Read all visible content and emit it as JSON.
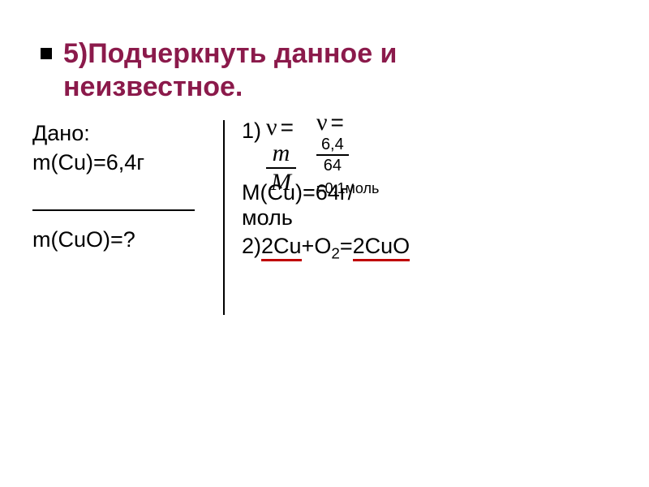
{
  "title": {
    "line1": "5)Подчеркнуть данное и",
    "line2": "неизвестное.",
    "color": "#8b1a4b",
    "fontsize": 34,
    "bullet_color": "#000000"
  },
  "given": {
    "label": "Дано:",
    "mass_cu": "m(Cu)=6,4г"
  },
  "find": {
    "mass_cuo": "m(CuO)=?"
  },
  "divider": {
    "h_color": "#000000",
    "v_color": "#000000"
  },
  "solution": {
    "step1": {
      "label": "1)",
      "nu_symbol": "ν",
      "eq_symbol": "=",
      "formula_generic": {
        "num": "m",
        "den": "M"
      },
      "formula_numeric": {
        "num": "6,4",
        "den": "64"
      },
      "result": "=0,1моль"
    },
    "molar_mass": "M(Cu)=64г/моль",
    "step2": {
      "label": "2)",
      "reactant1": "2Cu",
      "plus": "+O",
      "o2_sub": "2",
      "eq": "=",
      "product": "2CuO",
      "trailing_space": " ",
      "underline_color": "#c00000"
    }
  },
  "body_fontsize": 27,
  "body_color": "#000000",
  "background_color": "#ffffff"
}
